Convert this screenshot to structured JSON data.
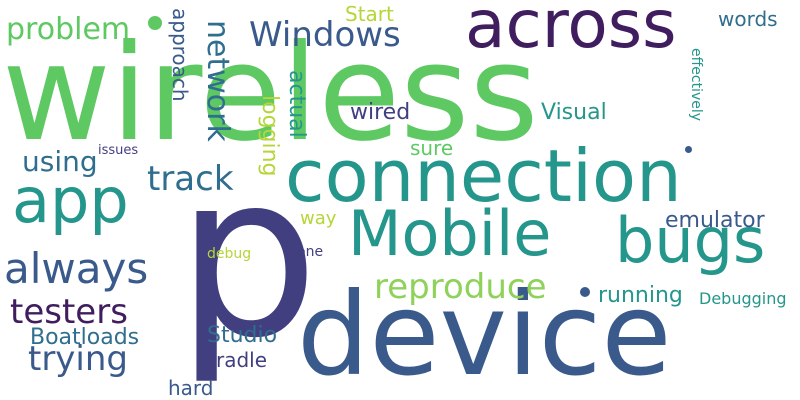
{
  "colors": {
    "background": "#ffffff",
    "dark_purple": "#3f1d5e",
    "indigo": "#413f80",
    "slate_blue": "#3a5a8c",
    "steel_blue": "#2f6e8e",
    "teal": "#24968b",
    "green": "#5ec962",
    "light_green": "#8ed25a",
    "yellow_green": "#b5d638"
  },
  "words": [
    {
      "text": "wireless"
    },
    {
      "text": "p"
    },
    {
      "text": "device"
    },
    {
      "text": "connection"
    },
    {
      "text": "across"
    },
    {
      "text": "Mobile"
    },
    {
      "text": "bugs"
    },
    {
      "text": "app"
    },
    {
      "text": "always"
    },
    {
      "text": "problem"
    },
    {
      "text": "Windows"
    },
    {
      "text": "network"
    },
    {
      "text": "reproduce"
    },
    {
      "text": "track"
    },
    {
      "text": "using"
    },
    {
      "text": "testers"
    },
    {
      "text": "trying"
    },
    {
      "text": "Boatloads"
    },
    {
      "text": "emulator"
    },
    {
      "text": "running"
    },
    {
      "text": "Visual"
    },
    {
      "text": "Studio"
    },
    {
      "text": "approach"
    },
    {
      "text": "logging"
    },
    {
      "text": "actual"
    },
    {
      "text": "wired"
    },
    {
      "text": "sure"
    },
    {
      "text": "Start"
    },
    {
      "text": "words"
    },
    {
      "text": "effectively"
    },
    {
      "text": "Debugging"
    },
    {
      "text": "cradle"
    },
    {
      "text": "hard"
    },
    {
      "text": "way"
    },
    {
      "text": "one"
    },
    {
      "text": "debug"
    },
    {
      "text": "issues"
    }
  ]
}
